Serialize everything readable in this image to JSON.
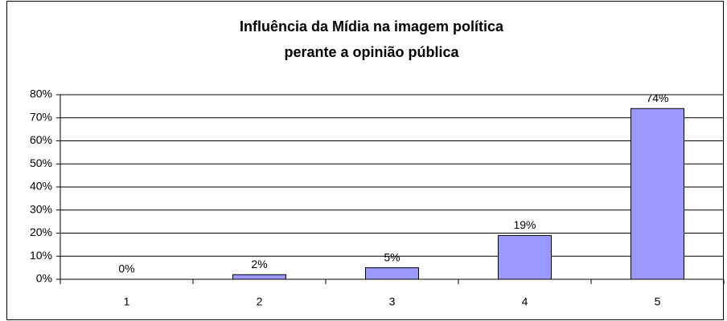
{
  "chart_data": {
    "type": "bar",
    "title": [
      "Influência da Mídia na imagem política",
      "perante a opinião pública"
    ],
    "categories": [
      "1",
      "2",
      "3",
      "4",
      "5"
    ],
    "values": [
      0,
      2,
      5,
      19,
      74
    ],
    "value_labels": [
      "0%",
      "2%",
      "5%",
      "19%",
      "74%"
    ],
    "color": "#9999ff",
    "ylim": [
      0,
      80
    ],
    "yticks": [
      {
        "value": 0,
        "label": "0%"
      },
      {
        "value": 10,
        "label": "10%"
      },
      {
        "value": 20,
        "label": "20%"
      },
      {
        "value": 30,
        "label": "30%"
      },
      {
        "value": 40,
        "label": "40%"
      },
      {
        "value": 50,
        "label": "50%"
      },
      {
        "value": 60,
        "label": "60%"
      },
      {
        "value": 70,
        "label": "70%"
      },
      {
        "value": 80,
        "label": "80%"
      }
    ],
    "grid": true
  }
}
